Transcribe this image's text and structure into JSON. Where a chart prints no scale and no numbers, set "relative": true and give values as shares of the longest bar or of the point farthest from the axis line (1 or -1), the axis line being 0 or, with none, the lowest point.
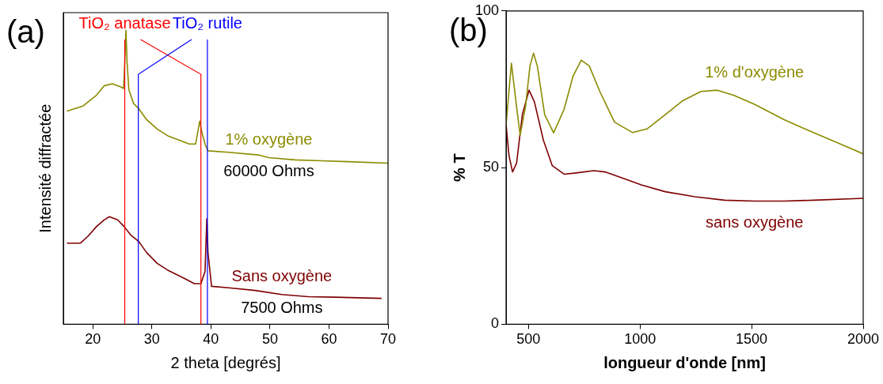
{
  "chart_data": [
    {
      "type": "line",
      "title": "(a)",
      "xlabel": "2 theta [degrés]",
      "ylabel": "Intensité diffractée",
      "relative": true,
      "xlim": [
        15,
        70
      ],
      "xticks": [
        20,
        30,
        40,
        50,
        60,
        70
      ],
      "tick_labels": "x",
      "marker": "none",
      "series": [
        {
          "name": "1% oxygène",
          "color": "#8b8b00",
          "x": [
            15.6,
            18.3,
            20.6,
            21.9,
            23.3,
            24.9,
            25.2,
            25.4,
            25.6,
            25.8,
            26.1,
            26.9,
            27.8,
            29.1,
            30.9,
            32.7,
            34.5,
            36.3,
            37.4,
            37.9,
            38.1,
            38.5,
            39.0,
            39.5,
            43.0,
            48.0,
            49.8,
            54.3,
            58.8,
            63.3,
            70.0
          ],
          "values": [
            0.725,
            0.742,
            0.779,
            0.811,
            0.818,
            0.806,
            0.802,
            0.889,
            1.0,
            0.889,
            0.797,
            0.751,
            0.733,
            0.696,
            0.664,
            0.641,
            0.627,
            0.613,
            0.613,
            0.668,
            0.691,
            0.65,
            0.613,
            0.59,
            0.585,
            0.576,
            0.567,
            0.559,
            0.556,
            0.553,
            0.548
          ]
        },
        {
          "name": "Sans oxygène",
          "color": "#7f0000",
          "x": [
            15.6,
            17.9,
            19.2,
            20.6,
            21.9,
            22.8,
            24.2,
            25.3,
            26.4,
            27.8,
            29.1,
            30.9,
            32.7,
            35.4,
            37.2,
            38.3,
            39.0,
            39.3,
            39.5,
            40.1,
            43.0,
            47.5,
            52.0,
            56.5,
            61.0,
            68.9
          ],
          "values": [
            0.276,
            0.276,
            0.3,
            0.332,
            0.355,
            0.366,
            0.355,
            0.332,
            0.304,
            0.281,
            0.244,
            0.207,
            0.184,
            0.157,
            0.138,
            0.138,
            0.18,
            0.359,
            0.244,
            0.129,
            0.124,
            0.115,
            0.101,
            0.094,
            0.092,
            0.088
          ]
        }
      ],
      "ref_lines": [
        {
          "axis": "x",
          "value": 25.4,
          "label": "TiO₂ anatase",
          "color": "#ff0000"
        },
        {
          "axis": "x",
          "value": 38.3,
          "label": null,
          "color": "#ff0000"
        },
        {
          "axis": "x",
          "value": 39.4,
          "label": "TiO₂ rutile",
          "color": "#0000ff"
        },
        {
          "axis": "x",
          "value": 27.7,
          "label": null,
          "color": "#0000ff"
        }
      ],
      "annotations": [
        "60000 Ohms",
        "7500 Ohms"
      ]
    },
    {
      "type": "line",
      "title": "(b)",
      "xlabel": "longueur d'onde [nm]",
      "ylabel": "% T",
      "xlim": [
        400,
        2000
      ],
      "xticks": [
        500,
        1000,
        1500,
        2000
      ],
      "ylim": [
        0,
        100
      ],
      "yticks": [
        0,
        50,
        100
      ],
      "marker": "none",
      "series": [
        {
          "name": "1% d'oxygène",
          "color": "#8b8b00",
          "x": [
            400,
            424,
            447,
            463,
            487,
            507,
            523,
            540,
            573,
            613,
            660,
            700,
            737,
            773,
            820,
            886,
            966,
            1033,
            1113,
            1193,
            1273,
            1346,
            1419,
            1513,
            1646,
            1779,
            1912,
            2000
          ],
          "values": [
            63.7,
            83.3,
            69.4,
            60.4,
            69.4,
            82.4,
            86.5,
            82.4,
            66.9,
            61.1,
            68.6,
            79.2,
            84.3,
            82.4,
            74.3,
            64.5,
            61.2,
            62.4,
            66.9,
            71.4,
            74.3,
            74.7,
            73.1,
            70.2,
            65.3,
            61.1,
            57.1,
            54.4
          ]
        },
        {
          "name": "sans oxygène",
          "color": "#7f0000",
          "x": [
            400,
            413,
            429,
            447,
            473,
            503,
            527,
            567,
            607,
            660,
            713,
            793,
            846,
            913,
            1006,
            1113,
            1246,
            1379,
            1513,
            1646,
            1779,
            2000
          ],
          "values": [
            63.7,
            53.9,
            48.6,
            51.4,
            66.9,
            74.7,
            71.0,
            58.8,
            50.6,
            47.9,
            48.3,
            49.0,
            48.6,
            46.9,
            44.5,
            42.3,
            40.7,
            39.6,
            39.3,
            39.3,
            39.6,
            40.2
          ]
        }
      ]
    }
  ]
}
